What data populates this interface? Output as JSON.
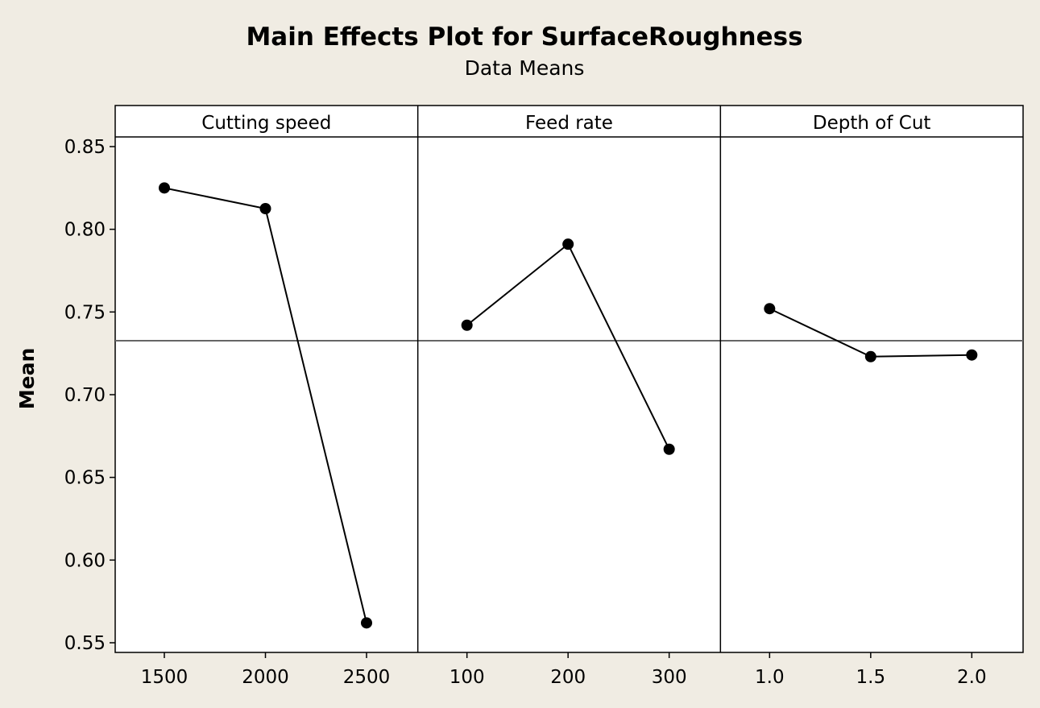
{
  "chart_data": {
    "type": "line",
    "title": "Main Effects Plot for SurfaceRoughness",
    "subtitle": "Data Means",
    "ylabel": "Mean",
    "ylim": [
      0.545,
      0.855
    ],
    "yticks": [
      "0.55",
      "0.60",
      "0.65",
      "0.70",
      "0.75",
      "0.80",
      "0.85"
    ],
    "reference_line": 0.7326,
    "grid": false,
    "colors": {
      "background": "#f0ece3",
      "panel": "#ffffff",
      "line": "#000000",
      "reference": "#666666"
    },
    "panels": [
      {
        "name": "Cutting speed",
        "categories": [
          "1500",
          "2000",
          "2500"
        ],
        "values": [
          0.825,
          0.8125,
          0.562
        ]
      },
      {
        "name": "Feed rate",
        "categories": [
          "100",
          "200",
          "300"
        ],
        "values": [
          0.742,
          0.791,
          0.667
        ]
      },
      {
        "name": "Depth of Cut",
        "categories": [
          "1.0",
          "1.5",
          "2.0"
        ],
        "values": [
          0.752,
          0.723,
          0.724
        ]
      }
    ]
  }
}
